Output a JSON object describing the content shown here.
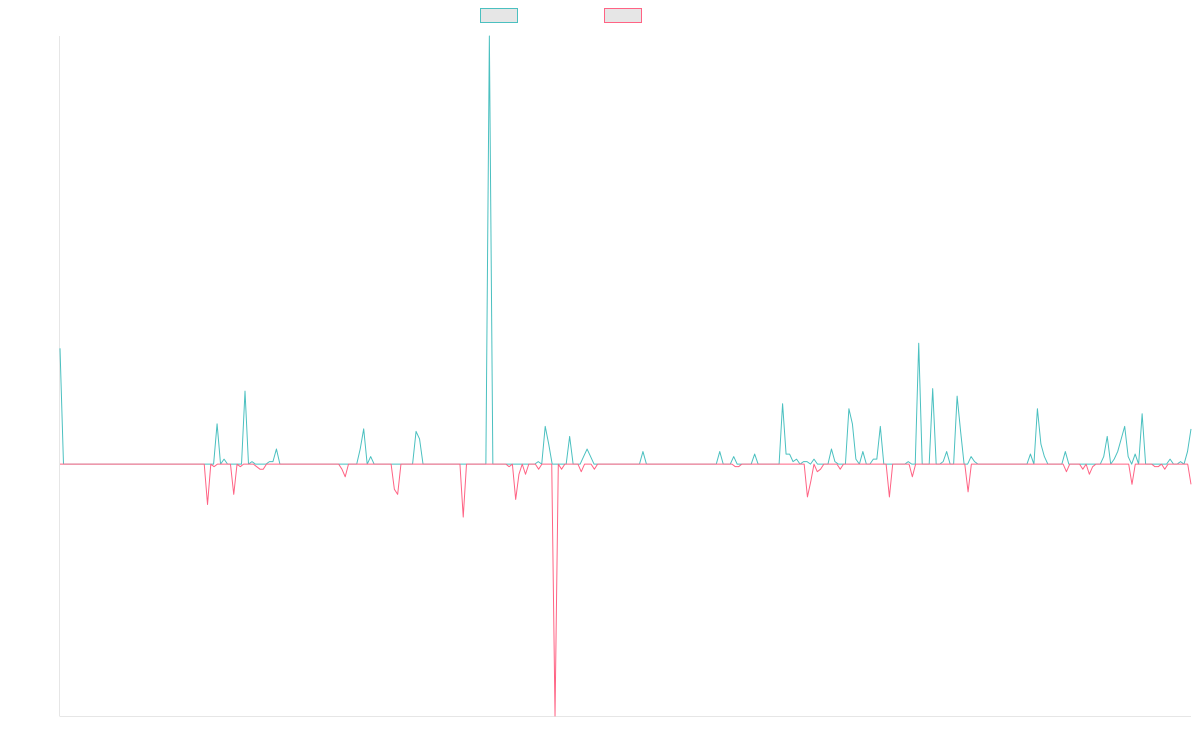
{
  "chart_data": {
    "type": "line",
    "title": "",
    "xlabel": "",
    "ylabel": "",
    "ylim": [
      -1,
      1.7
    ],
    "grid": false,
    "legend": "top-center",
    "series": [
      {
        "name": "",
        "color": "#4bc0c0",
        "fill_color": "#e6e6e6",
        "values": [
          0.46,
          0,
          0,
          0,
          0,
          0,
          0,
          0,
          0,
          0,
          0,
          0,
          0,
          0,
          0,
          0,
          0,
          0,
          0,
          0,
          0,
          0,
          0,
          0,
          0,
          0,
          0,
          0,
          0,
          0,
          0,
          0,
          0,
          0,
          0,
          0,
          0,
          0,
          0,
          0,
          0,
          0,
          0,
          0,
          0,
          0.16,
          0,
          0.02,
          0,
          0,
          0,
          0,
          0,
          0.29,
          0,
          0.01,
          0,
          0,
          0,
          0,
          0.01,
          0.01,
          0.06,
          0,
          0,
          0,
          0,
          0,
          0,
          0,
          0,
          0,
          0,
          0,
          0,
          0,
          0,
          0,
          0,
          0,
          0,
          0,
          0,
          0,
          0,
          0,
          0.06,
          0.14,
          0,
          0.03,
          0,
          0,
          0,
          0,
          0,
          0,
          0,
          0,
          0,
          0,
          0,
          0,
          0.13,
          0.1,
          0,
          0,
          0,
          0,
          0,
          0,
          0,
          0,
          0,
          0,
          0,
          0,
          0,
          0,
          0,
          0,
          0,
          0,
          0,
          1.7,
          0,
          0,
          0,
          0,
          0,
          0,
          0,
          0,
          0,
          0,
          0,
          0,
          0,
          0.01,
          0,
          0.15,
          0.08,
          0,
          0,
          0,
          0,
          0,
          0.11,
          0,
          0,
          0,
          0.03,
          0.06,
          0.03,
          0,
          0,
          0,
          0,
          0,
          0,
          0,
          0,
          0,
          0,
          0,
          0,
          0,
          0,
          0.05,
          0,
          0,
          0,
          0,
          0,
          0,
          0,
          0,
          0,
          0,
          0,
          0,
          0,
          0,
          0,
          0,
          0,
          0,
          0,
          0,
          0,
          0.05,
          0,
          0,
          0,
          0.03,
          0,
          0,
          0,
          0,
          0,
          0.04,
          0,
          0,
          0,
          0,
          0,
          0,
          0,
          0.24,
          0.04,
          0.04,
          0.01,
          0.02,
          0,
          0.01,
          0.01,
          0,
          0.02,
          0,
          0,
          0,
          0,
          0.06,
          0.01,
          0,
          0,
          0,
          0.22,
          0.16,
          0.02,
          0,
          0.05,
          0,
          0,
          0.02,
          0.02,
          0.15,
          0,
          0,
          0,
          0,
          0,
          0,
          0,
          0.01,
          0,
          0,
          0.48,
          0,
          0,
          0,
          0.3,
          0,
          0,
          0.01,
          0.05,
          0,
          0,
          0.27,
          0.13,
          0,
          0,
          0.03,
          0.01,
          0,
          0,
          0,
          0,
          0,
          0,
          0,
          0,
          0,
          0,
          0,
          0,
          0,
          0,
          0,
          0.04,
          0,
          0.22,
          0.08,
          0.03,
          0,
          0,
          0,
          0,
          0,
          0.05,
          0,
          0,
          0,
          0,
          0,
          0,
          0,
          0,
          0,
          0,
          0.03,
          0.11,
          0,
          0.02,
          0.05,
          0.1,
          0.15,
          0.03,
          0,
          0.04,
          0,
          0.2,
          0,
          0,
          0,
          0,
          0,
          0,
          0,
          0.02,
          0,
          0,
          0.01,
          0,
          0.05,
          0.14
        ]
      },
      {
        "name": "",
        "color": "#ff6384",
        "fill_color": "#e6e6e6",
        "values": [
          0,
          0,
          0,
          0,
          0,
          0,
          0,
          0,
          0,
          0,
          0,
          0,
          0,
          0,
          0,
          0,
          0,
          0,
          0,
          0,
          0,
          0,
          0,
          0,
          0,
          0,
          0,
          0,
          0,
          0,
          0,
          0,
          0,
          0,
          0,
          0,
          0,
          0,
          0,
          0,
          0,
          0,
          0,
          0,
          0,
          -0.16,
          0,
          -0.01,
          0,
          0,
          0,
          0,
          0,
          -0.12,
          0,
          -0.01,
          0,
          0,
          0,
          0,
          -0.01,
          -0.02,
          -0.02,
          0,
          0,
          0,
          0,
          0,
          0,
          0,
          0,
          0,
          0,
          0,
          0,
          0,
          0,
          0,
          0,
          0,
          0,
          0,
          0,
          0,
          0,
          0,
          -0.02,
          -0.05,
          0,
          0,
          0,
          0,
          0,
          0,
          0,
          0,
          0,
          0,
          0,
          0,
          0,
          0,
          -0.1,
          -0.12,
          0,
          0,
          0,
          0,
          0,
          0,
          0,
          0,
          0,
          0,
          0,
          0,
          0,
          0,
          0,
          0,
          0,
          0,
          0,
          -0.21,
          0,
          0,
          0,
          0,
          0,
          0,
          0,
          0,
          0,
          0,
          0,
          0,
          0,
          -0.01,
          0,
          -0.14,
          -0.04,
          0,
          -0.04,
          0,
          0,
          0,
          -0.02,
          0,
          0,
          0,
          0,
          -1,
          0,
          -0.02,
          0,
          0,
          0,
          0,
          0,
          -0.03,
          0,
          0,
          0,
          -0.02,
          0,
          0,
          0,
          0,
          0,
          0,
          0,
          0,
          0,
          0,
          0,
          0,
          0,
          0,
          0,
          0,
          0,
          0,
          0,
          0,
          0,
          0,
          0,
          0,
          0,
          0,
          0,
          0,
          0,
          0,
          0,
          0,
          0,
          0,
          0,
          0,
          0,
          0,
          0,
          0,
          0,
          0,
          -0.01,
          -0.01,
          0,
          0,
          0,
          0,
          0,
          0,
          0,
          0,
          0,
          0,
          0,
          0,
          0,
          0,
          0,
          0,
          0,
          0,
          0,
          0,
          -0.13,
          -0.07,
          0,
          -0.03,
          -0.02,
          0,
          0,
          0,
          0,
          0,
          -0.02,
          0,
          0,
          0,
          0,
          0,
          0,
          0,
          0,
          0,
          0,
          0,
          0,
          0,
          0,
          -0.13,
          0,
          0,
          0,
          0,
          0,
          0,
          -0.05,
          0,
          0,
          0,
          0,
          0,
          0,
          0,
          0,
          0,
          0,
          0,
          0,
          0,
          0,
          0,
          0,
          -0.11,
          0,
          0,
          0,
          0,
          0,
          0,
          0,
          0,
          0,
          0,
          0,
          0,
          0,
          0,
          0,
          0,
          0,
          0,
          0,
          0,
          0,
          0,
          0,
          0,
          0,
          0,
          0,
          0,
          0,
          -0.03,
          0,
          0,
          0,
          0,
          -0.02,
          0,
          -0.04,
          -0.01,
          0,
          0,
          0,
          0,
          0,
          0,
          0,
          0,
          0,
          0,
          0,
          -0.08,
          0,
          0,
          0,
          0,
          0,
          0,
          -0.01,
          -0.01,
          0,
          -0.02,
          0,
          0,
          0,
          0,
          0,
          0,
          0,
          -0.08
        ]
      }
    ]
  }
}
